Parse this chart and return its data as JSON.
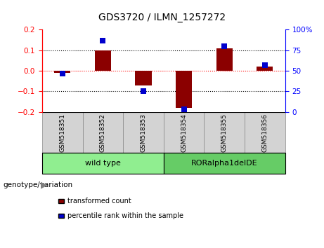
{
  "title": "GDS3720 / ILMN_1257272",
  "categories": [
    "GSM518351",
    "GSM518352",
    "GSM518353",
    "GSM518354",
    "GSM518355",
    "GSM518356"
  ],
  "red_bars": [
    -0.01,
    0.1,
    -0.07,
    -0.18,
    0.11,
    0.02
  ],
  "blue_dots": [
    47,
    87,
    25,
    3,
    80,
    57
  ],
  "ylim_left": [
    -0.2,
    0.2
  ],
  "ylim_right": [
    0,
    100
  ],
  "yticks_left": [
    -0.2,
    -0.1,
    0.0,
    0.1,
    0.2
  ],
  "yticks_right": [
    0,
    25,
    50,
    75,
    100
  ],
  "ytick_labels_right": [
    "0",
    "25",
    "50",
    "75",
    "100%"
  ],
  "groups": [
    {
      "label": "wild type",
      "indices": [
        0,
        1,
        2
      ],
      "color": "#90EE90"
    },
    {
      "label": "RORalpha1delDE",
      "indices": [
        3,
        4,
        5
      ],
      "color": "#66CC66"
    }
  ],
  "group_label": "genotype/variation",
  "legend_red": "transformed count",
  "legend_blue": "percentile rank within the sample",
  "bar_color": "#8B0000",
  "dot_color": "#0000CD",
  "bar_width": 0.4,
  "dot_size": 30,
  "tick_bg_color": "#D3D3D3",
  "tick_border_color": "#888888"
}
